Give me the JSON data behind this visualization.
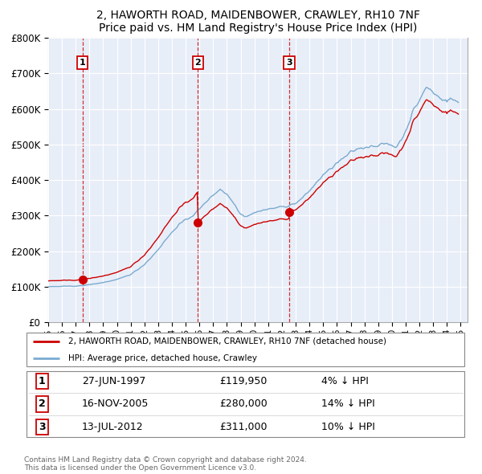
{
  "title": "2, HAWORTH ROAD, MAIDENBOWER, CRAWLEY, RH10 7NF",
  "subtitle": "Price paid vs. HM Land Registry's House Price Index (HPI)",
  "purchases": [
    {
      "date_num": 1997.49,
      "price": 119950,
      "label": "1"
    },
    {
      "date_num": 2005.88,
      "price": 280000,
      "label": "2"
    },
    {
      "date_num": 2012.53,
      "price": 311000,
      "label": "3"
    }
  ],
  "purchase_dates_str": [
    "27-JUN-1997",
    "16-NOV-2005",
    "13-JUL-2012"
  ],
  "purchase_prices_str": [
    "£119,950",
    "£280,000",
    "£311,000"
  ],
  "purchase_hpi_str": [
    "4% ↓ HPI",
    "14% ↓ HPI",
    "10% ↓ HPI"
  ],
  "legend_house": "2, HAWORTH ROAD, MAIDENBOWER, CRAWLEY, RH10 7NF (detached house)",
  "legend_hpi": "HPI: Average price, detached house, Crawley",
  "footer1": "Contains HM Land Registry data © Crown copyright and database right 2024.",
  "footer2": "This data is licensed under the Open Government Licence v3.0.",
  "house_color": "#cc0000",
  "hpi_color": "#7aaad0",
  "bg_color": "#e8eef8",
  "grid_color": "#ffffff",
  "ylim": [
    0,
    800000
  ],
  "xlim_start": 1995.0,
  "xlim_end": 2025.5
}
